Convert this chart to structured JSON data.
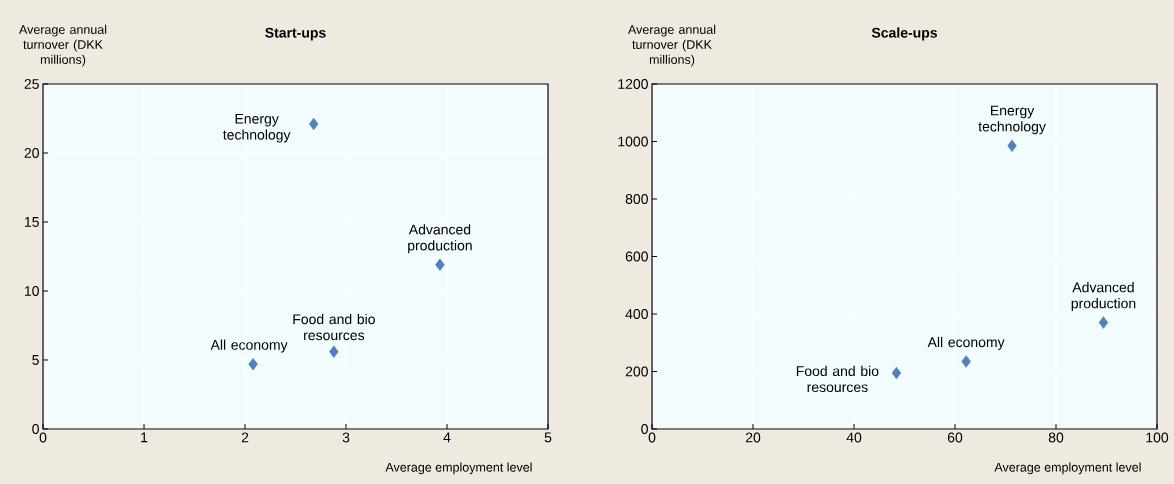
{
  "chart_data": [
    {
      "type": "scatter",
      "title": "Start-ups",
      "xlabel": "Average employment level",
      "ylabel": "Average annual turnover (DKK millions)",
      "x": [
        2.68,
        3.93,
        2.88,
        2.08
      ],
      "values": [
        22.1,
        11.9,
        5.6,
        4.7
      ],
      "color": "#4f81bd",
      "marker": "diamond",
      "xlim": [
        0,
        5
      ],
      "ylim": [
        0,
        25
      ],
      "xticks": [
        0,
        1,
        2,
        3,
        4,
        5
      ],
      "yticks": [
        0,
        5,
        10,
        15,
        20,
        25
      ],
      "grid": true,
      "annotations": [
        {
          "text": "Energy technology",
          "x": 2.68,
          "y": 22.1
        },
        {
          "text": "Advanced production",
          "x": 3.93,
          "y": 11.9
        },
        {
          "text": "Food and bio resources",
          "x": 2.88,
          "y": 5.6
        },
        {
          "text": "All economy",
          "x": 2.08,
          "y": 4.7
        }
      ]
    },
    {
      "type": "scatter",
      "title": "Scale-ups",
      "xlabel": "Average employment level",
      "ylabel": "Average annual turnover (DKK millions)",
      "x": [
        71.3,
        89.4,
        62.2,
        48.4
      ],
      "values": [
        985,
        370,
        235,
        195
      ],
      "color": "#4f81bd",
      "marker": "diamond",
      "xlim": [
        0,
        100
      ],
      "ylim": [
        0,
        1200
      ],
      "xticks": [
        0,
        20,
        40,
        60,
        80,
        100
      ],
      "yticks": [
        0,
        200,
        400,
        600,
        800,
        1000,
        1200
      ],
      "grid": true,
      "annotations": [
        {
          "text": "Energy technology",
          "x": 71.3,
          "y": 985
        },
        {
          "text": "Advanced production",
          "x": 89.4,
          "y": 370
        },
        {
          "text": "All economy",
          "x": 62.2,
          "y": 235
        },
        {
          "text": "Food and bio resources",
          "x": 48.4,
          "y": 195
        }
      ]
    }
  ]
}
